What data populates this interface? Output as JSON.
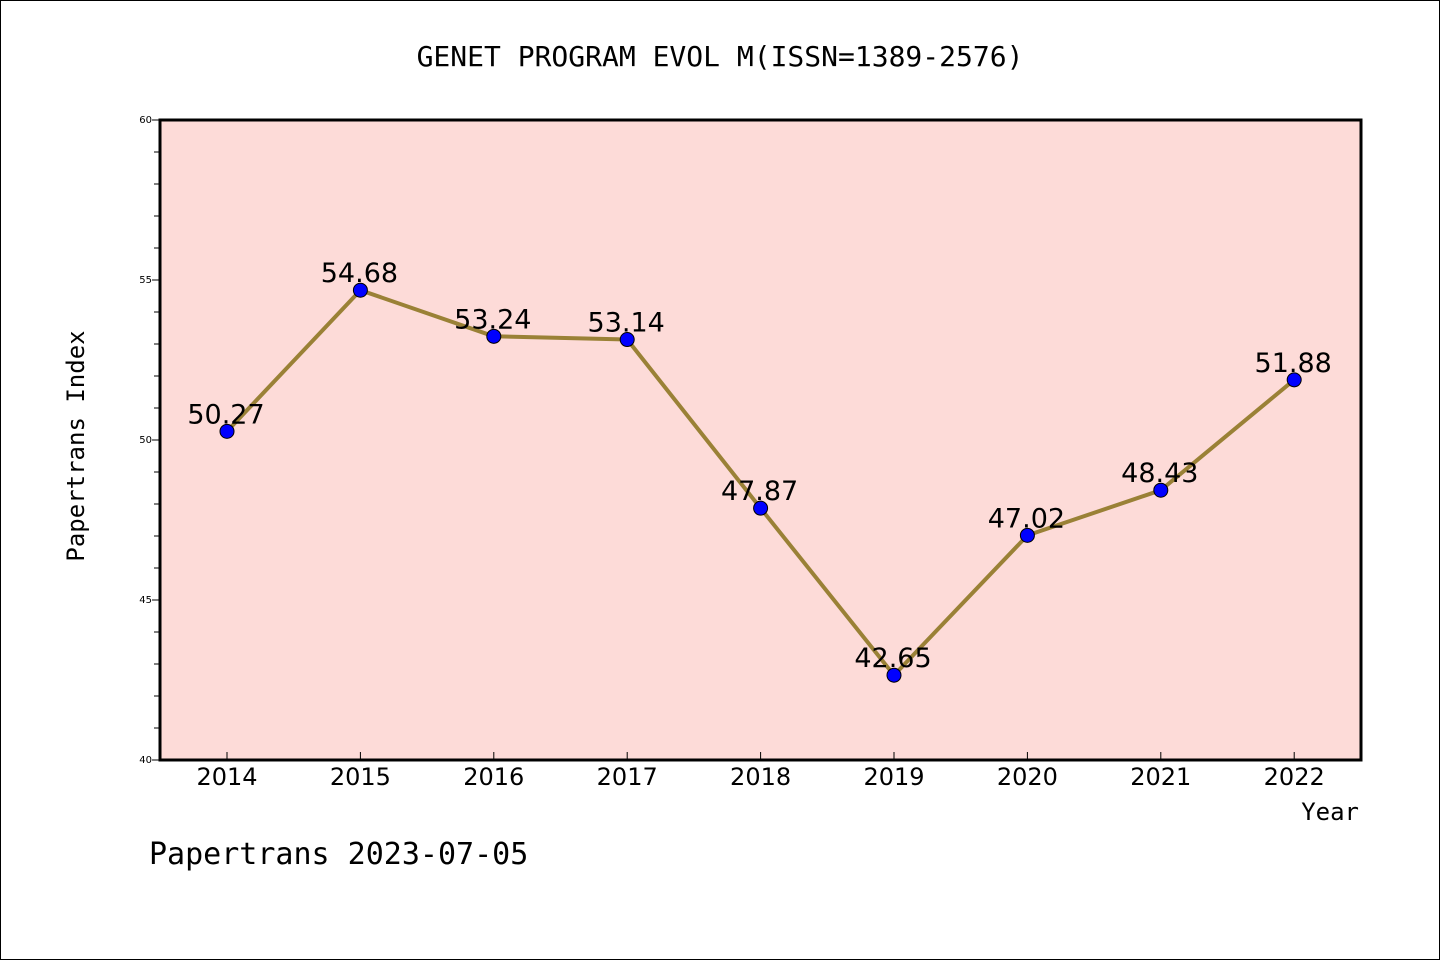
{
  "chart_data": {
    "type": "line",
    "title": "GENET PROGRAM EVOL M(ISSN=1389-2576)",
    "xlabel": "Year",
    "ylabel": "Papertrans Index",
    "categories": [
      "2014",
      "2015",
      "2016",
      "2017",
      "2018",
      "2019",
      "2020",
      "2021",
      "2022"
    ],
    "series": [
      {
        "values": [
          50.27,
          54.68,
          53.24,
          53.14,
          47.87,
          42.65,
          47.02,
          48.43,
          51.88
        ]
      }
    ],
    "data_labels": [
      "50.27",
      "54.68",
      "53.24",
      "53.14",
      "47.87",
      "42.65",
      "47.02",
      "48.43",
      "51.88"
    ],
    "ylim": [
      40,
      60
    ],
    "yticks": [
      "40",
      "45",
      "50",
      "55",
      "60"
    ],
    "ytick_values": [
      40,
      45,
      50,
      55,
      60
    ],
    "grid": false,
    "colors": {
      "plot_background": "#fddbd8",
      "line": "#9a8136",
      "marker": "#0000ff"
    }
  },
  "footer": "Papertrans 2023-07-05"
}
